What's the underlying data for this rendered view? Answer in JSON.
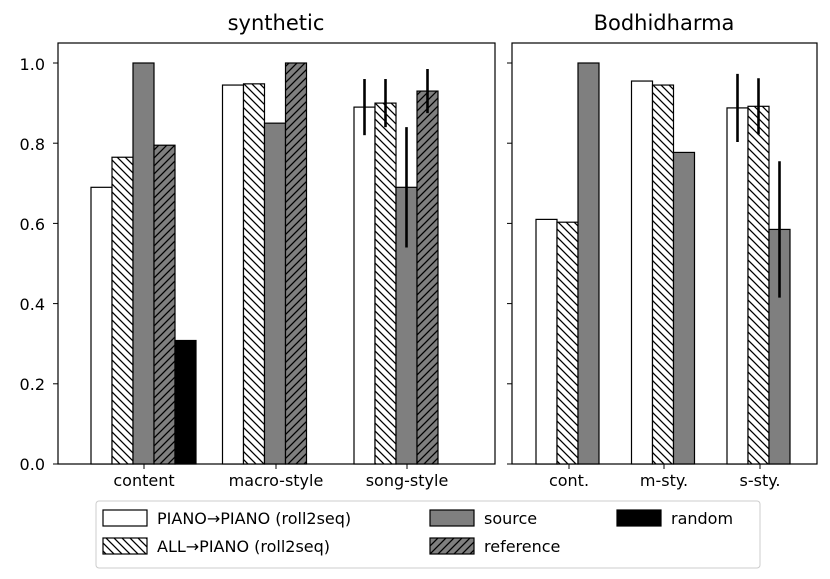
{
  "chart_data": [
    {
      "type": "bar",
      "title": "synthetic",
      "categories": [
        "content",
        "macro-style",
        "song-style"
      ],
      "ylim": [
        0,
        1.05
      ],
      "yticks": [
        "0.0",
        "0.2",
        "0.4",
        "0.6",
        "0.8",
        "1.0"
      ],
      "series": [
        {
          "name": "PIANO→PIANO (roll2seq)",
          "values": [
            0.69,
            0.945,
            0.89
          ],
          "errors": [
            null,
            null,
            0.07
          ]
        },
        {
          "name": "ALL→PIANO (roll2seq)",
          "values": [
            0.765,
            0.948,
            0.9
          ],
          "errors": [
            null,
            null,
            0.06
          ]
        },
        {
          "name": "source",
          "values": [
            1.0,
            0.85,
            0.69
          ],
          "errors": [
            null,
            null,
            0.15
          ]
        },
        {
          "name": "reference",
          "values": [
            0.795,
            1.0,
            0.93
          ],
          "errors": [
            null,
            null,
            0.055
          ]
        },
        {
          "name": "random",
          "values": [
            0.308,
            null,
            null
          ],
          "errors": [
            null,
            null,
            null
          ]
        }
      ]
    },
    {
      "type": "bar",
      "title": "Bodhidharma",
      "categories": [
        "cont.",
        "m-sty.",
        "s-sty."
      ],
      "ylim": [
        0,
        1.05
      ],
      "series": [
        {
          "name": "PIANO→PIANO (roll2seq)",
          "values": [
            0.61,
            0.955,
            0.888
          ],
          "errors": [
            null,
            null,
            0.085
          ]
        },
        {
          "name": "ALL→PIANO (roll2seq)",
          "values": [
            0.603,
            0.945,
            0.892
          ],
          "errors": [
            null,
            null,
            0.07
          ]
        },
        {
          "name": "source",
          "values": [
            1.0,
            0.777,
            0.585
          ],
          "errors": [
            null,
            null,
            0.17
          ]
        }
      ]
    }
  ],
  "legend": {
    "placement": "bottom",
    "items": [
      {
        "label": "PIANO→PIANO (roll2seq)",
        "style": "white"
      },
      {
        "label": "ALL→PIANO (roll2seq)",
        "style": "hatch-back"
      },
      {
        "label": "source",
        "style": "gray"
      },
      {
        "label": "reference",
        "style": "gray-hatch"
      },
      {
        "label": "random",
        "style": "black"
      }
    ]
  },
  "colors": {
    "source": "#7f7f7f",
    "random": "#000000",
    "white": "#ffffff",
    "edge": "#000000"
  }
}
